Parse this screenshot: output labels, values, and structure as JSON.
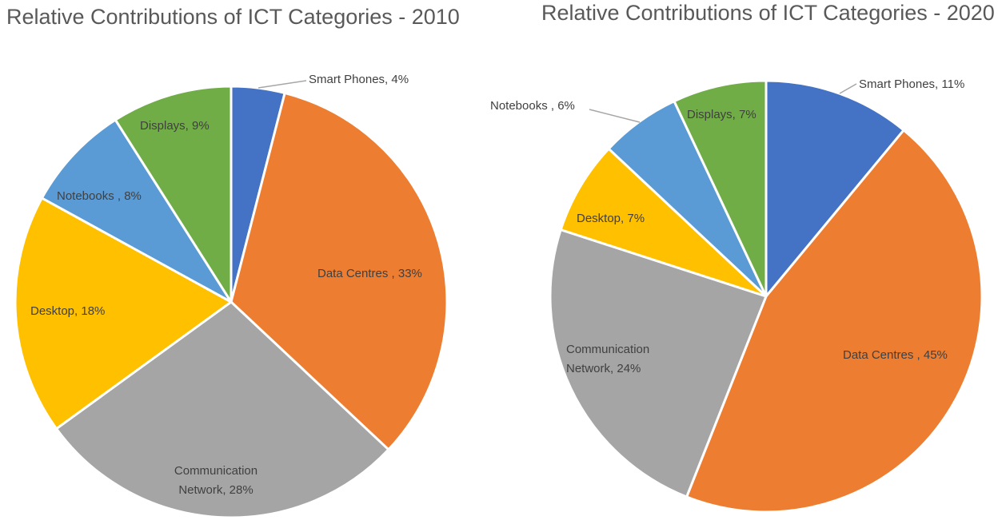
{
  "chart_data": [
    {
      "type": "pie",
      "title": "Relative Contributions of ICT Categories - 2010",
      "slices": [
        {
          "name": "Smart Phones",
          "value": 4,
          "label": "Smart Phones, 4%",
          "color": "#4472C4"
        },
        {
          "name": "Data Centres",
          "value": 33,
          "label": "Data Centres , 33%",
          "color": "#ED7D31"
        },
        {
          "name": "Communication Network",
          "value": 28,
          "label_lines": [
            "Communication",
            "Network, 28%"
          ],
          "color": "#A5A5A5"
        },
        {
          "name": "Desktop",
          "value": 18,
          "label": "Desktop, 18%",
          "color": "#FFC000"
        },
        {
          "name": "Notebooks",
          "value": 8,
          "label": "Notebooks , 8%",
          "color": "#5B9BD5"
        },
        {
          "name": "Displays",
          "value": 9,
          "label": "Displays, 9%",
          "color": "#70AD47"
        }
      ]
    },
    {
      "type": "pie",
      "title": "Relative Contributions of ICT Categories - 2020",
      "slices": [
        {
          "name": "Smart Phones",
          "value": 11,
          "label": "Smart Phones, 11%",
          "color": "#4472C4"
        },
        {
          "name": "Data Centres",
          "value": 45,
          "label": "Data Centres , 45%",
          "color": "#ED7D31"
        },
        {
          "name": "Communication Network",
          "value": 24,
          "label_lines": [
            "Communication",
            "Network, 24%"
          ],
          "color": "#A5A5A5"
        },
        {
          "name": "Desktop",
          "value": 7,
          "label": "Desktop, 7%",
          "color": "#FFC000"
        },
        {
          "name": "Notebooks",
          "value": 6,
          "label": "Notebooks , 6%",
          "color": "#5B9BD5"
        },
        {
          "name": "Displays",
          "value": 7,
          "label": "Displays, 7%",
          "color": "#70AD47"
        }
      ]
    }
  ]
}
